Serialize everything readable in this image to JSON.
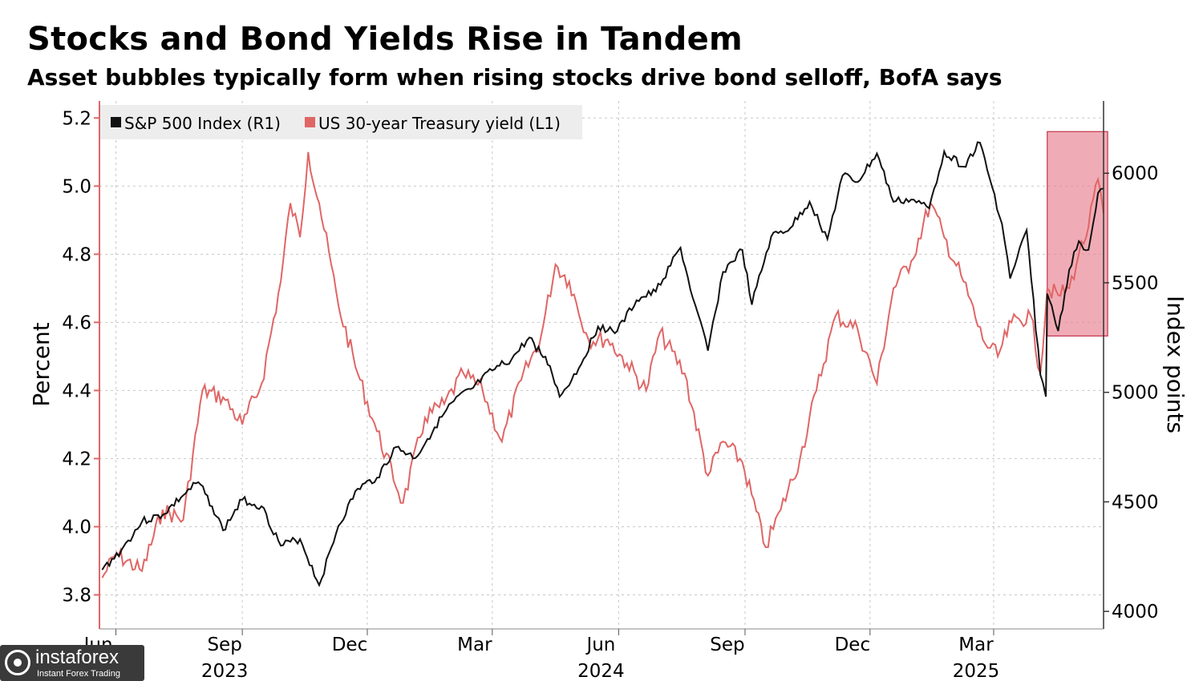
{
  "title": "Stocks and Bond Yields Rise in Tandem",
  "subtitle": "Asset bubbles typically form when rising stocks drive bond selloff, BofA says",
  "watermark": {
    "name": "instaforex",
    "tagline": "Instant Forex Trading"
  },
  "chart_data": {
    "type": "line",
    "x_axis": {
      "ticks": [
        "Jun",
        "Sep",
        "Dec",
        "Mar",
        "Jun",
        "Sep",
        "Dec",
        "Mar"
      ],
      "tick_dates": [
        "2023-06-01",
        "2023-09-01",
        "2023-12-01",
        "2024-03-01",
        "2024-06-01",
        "2024-09-01",
        "2024-12-01",
        "2025-03-01"
      ],
      "years": [
        "2023",
        "2024",
        "2025"
      ],
      "year_dates": [
        "2023-09-01",
        "2024-06-01",
        "2025-03-01"
      ],
      "range": [
        "2023-05-20",
        "2025-05-20"
      ]
    },
    "y_left": {
      "label": "Percent",
      "ticks": [
        "3.8",
        "4.0",
        "4.2",
        "4.4",
        "4.6",
        "4.8",
        "5.0",
        "5.2"
      ],
      "range": [
        3.7,
        5.25
      ]
    },
    "y_right": {
      "label": "Index points",
      "ticks": [
        "4000",
        "4500",
        "5000",
        "5500",
        "6000"
      ],
      "range": [
        3920,
        6330
      ]
    },
    "legend_placement": "top-left",
    "grid": true,
    "colors": {
      "sp500": "#111111",
      "yield": "#e06666",
      "highlight": "#e8808f",
      "highlight_border": "#c2334b"
    },
    "series": [
      {
        "name": "S&P 500 Index (R1)",
        "axis": "right",
        "x": [
          "2023-05-22",
          "2023-06-05",
          "2023-06-20",
          "2023-07-05",
          "2023-07-20",
          "2023-07-31",
          "2023-08-10",
          "2023-08-18",
          "2023-09-01",
          "2023-09-15",
          "2023-09-29",
          "2023-10-13",
          "2023-10-27",
          "2023-11-10",
          "2023-11-24",
          "2023-12-08",
          "2023-12-22",
          "2024-01-05",
          "2024-01-19",
          "2024-02-02",
          "2024-02-16",
          "2024-03-01",
          "2024-03-15",
          "2024-03-28",
          "2024-04-12",
          "2024-04-19",
          "2024-05-03",
          "2024-05-17",
          "2024-05-31",
          "2024-06-14",
          "2024-06-28",
          "2024-07-16",
          "2024-07-25",
          "2024-08-05",
          "2024-08-16",
          "2024-08-30",
          "2024-09-06",
          "2024-09-20",
          "2024-10-04",
          "2024-10-18",
          "2024-10-31",
          "2024-11-11",
          "2024-11-22",
          "2024-12-06",
          "2024-12-18",
          "2024-12-31",
          "2025-01-13",
          "2025-01-24",
          "2025-02-07",
          "2025-02-19",
          "2025-03-07",
          "2025-03-13",
          "2025-03-25",
          "2025-04-04",
          "2025-04-08",
          "2025-04-09",
          "2025-04-17",
          "2025-04-25",
          "2025-05-02",
          "2025-05-09",
          "2025-05-16",
          "2025-05-20"
        ],
        "y": [
          4190,
          4280,
          4410,
          4440,
          4530,
          4590,
          4480,
          4370,
          4510,
          4480,
          4300,
          4330,
          4120,
          4390,
          4560,
          4610,
          4750,
          4700,
          4840,
          4960,
          5020,
          5100,
          5150,
          5250,
          5120,
          4980,
          5110,
          5300,
          5280,
          5420,
          5460,
          5660,
          5430,
          5190,
          5550,
          5650,
          5400,
          5710,
          5750,
          5870,
          5700,
          5990,
          5960,
          6090,
          5870,
          5880,
          5840,
          6100,
          6030,
          6140,
          5770,
          5520,
          5740,
          5080,
          4980,
          5450,
          5280,
          5560,
          5690,
          5650,
          5910,
          5930
        ]
      },
      {
        "name": "US 30-year Treasury yield (L1)",
        "axis": "left",
        "x": [
          "2023-05-22",
          "2023-06-01",
          "2023-06-20",
          "2023-07-05",
          "2023-07-20",
          "2023-08-03",
          "2023-08-18",
          "2023-09-01",
          "2023-09-15",
          "2023-09-29",
          "2023-10-06",
          "2023-10-13",
          "2023-10-19",
          "2023-10-27",
          "2023-11-10",
          "2023-11-24",
          "2023-12-08",
          "2023-12-27",
          "2024-01-12",
          "2024-01-26",
          "2024-02-09",
          "2024-02-23",
          "2024-03-08",
          "2024-03-22",
          "2024-04-05",
          "2024-04-16",
          "2024-04-26",
          "2024-05-10",
          "2024-05-24",
          "2024-06-07",
          "2024-06-21",
          "2024-07-01",
          "2024-07-19",
          "2024-08-05",
          "2024-08-16",
          "2024-08-30",
          "2024-09-16",
          "2024-09-27",
          "2024-10-11",
          "2024-10-23",
          "2024-11-06",
          "2024-11-22",
          "2024-12-06",
          "2024-12-18",
          "2024-12-31",
          "2025-01-14",
          "2025-01-24",
          "2025-02-07",
          "2025-02-21",
          "2025-03-04",
          "2025-03-14",
          "2025-03-28",
          "2025-04-04",
          "2025-04-09",
          "2025-04-17",
          "2025-04-25",
          "2025-05-02",
          "2025-05-09",
          "2025-05-16",
          "2025-05-20"
        ],
        "y": [
          3.85,
          3.92,
          3.87,
          4.05,
          4.02,
          4.4,
          4.38,
          4.3,
          4.42,
          4.72,
          4.95,
          4.85,
          5.1,
          4.95,
          4.65,
          4.45,
          4.28,
          4.07,
          4.32,
          4.36,
          4.45,
          4.4,
          4.25,
          4.43,
          4.55,
          4.77,
          4.72,
          4.55,
          4.55,
          4.48,
          4.4,
          4.57,
          4.45,
          4.15,
          4.25,
          4.19,
          3.94,
          4.05,
          4.2,
          4.4,
          4.62,
          4.58,
          4.42,
          4.7,
          4.78,
          4.95,
          4.85,
          4.72,
          4.55,
          4.5,
          4.6,
          4.62,
          4.45,
          4.7,
          4.68,
          4.7,
          4.8,
          4.88,
          5.02,
          4.92
        ]
      }
    ],
    "annotations": [
      {
        "type": "highlight_box",
        "x_range": [
          "2025-04-09",
          "2025-05-23"
        ],
        "y_left_range": [
          4.56,
          5.16
        ]
      }
    ]
  }
}
